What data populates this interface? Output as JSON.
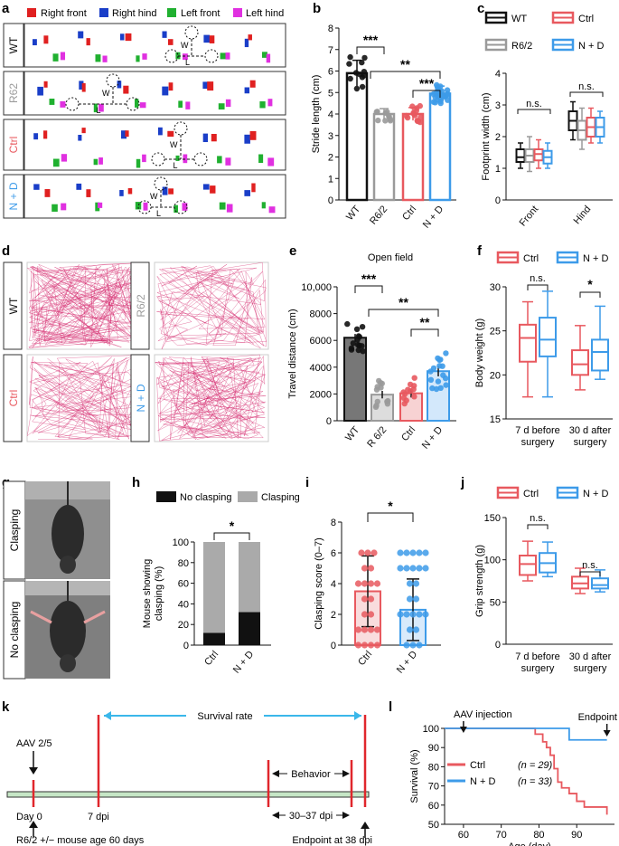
{
  "colors": {
    "wt": "#111111",
    "r62": "#9a9a9a",
    "ctrl": "#e8595f",
    "nd": "#3d9be9",
    "rf": "#e02020",
    "rh": "#1a3ec8",
    "lf": "#20b030",
    "lh": "#e030e0",
    "track": "#d4246a"
  },
  "panel_a": {
    "letter": "a",
    "legend": [
      "Right front",
      "Right hind",
      "Left front",
      "Left hind"
    ],
    "rows": [
      "WT",
      "R62",
      "Ctrl",
      "N + D"
    ],
    "w_label": "W",
    "l_label": "L"
  },
  "panel_d": {
    "letter": "d",
    "labels": [
      "WT",
      "R6/2",
      "Ctrl",
      "N + D"
    ]
  },
  "panel_g": {
    "letter": "g",
    "labels": [
      "Clasping",
      "No clasping"
    ]
  },
  "panel_k": {
    "letter": "k",
    "aav": "AAV 2/5",
    "day0": "Day 0",
    "dpi7": "7 dpi",
    "survival": "Survival rate",
    "behavior": "Behavior",
    "dpi3037": "30–37 dpi",
    "mouse_age": "R6/2 +/− mouse age 60 days",
    "endpoint": "Endpoint at 38 dpi"
  },
  "chart_data": [
    {
      "id": "b",
      "type": "bar",
      "letter": "b",
      "categories": [
        "WT",
        "R6/2",
        "Ctrl",
        "N + D"
      ],
      "values": [
        5.9,
        4.0,
        4.0,
        4.95
      ],
      "errors": [
        0.6,
        0.25,
        0.3,
        0.35
      ],
      "ylabel": "Stride length (cm)",
      "ylim": [
        0,
        8
      ],
      "yticks": [
        "0",
        "1",
        "2",
        "3",
        "4",
        "5",
        "6",
        "7",
        "8"
      ],
      "significance": [
        "***",
        "**",
        "***"
      ]
    },
    {
      "id": "c",
      "type": "box",
      "letter": "c",
      "legend": [
        "WT",
        "Ctrl",
        "R6/2",
        "N + D"
      ],
      "categories": [
        "Front",
        "Hind"
      ],
      "ylabel": "Footprint width (cm)",
      "ylim": [
        0,
        4
      ],
      "yticks": [
        "0",
        "1",
        "2",
        "3",
        "4"
      ],
      "significance": [
        "n.s.",
        "n.s."
      ]
    },
    {
      "id": "e",
      "type": "bar",
      "letter": "e",
      "title": "Open field",
      "categories": [
        "WT",
        "R 6/2",
        "Ctrl",
        "N + D"
      ],
      "values": [
        6200,
        1950,
        2050,
        3700
      ],
      "errors": [
        800,
        800,
        900,
        1100
      ],
      "ylabel": "Travel distance (cm)",
      "ylim": [
        0,
        10000
      ],
      "yticks": [
        "0",
        "2000",
        "4000",
        "6000",
        "8000",
        "10,000"
      ],
      "significance": [
        "***",
        "**",
        "**"
      ]
    },
    {
      "id": "f",
      "type": "box",
      "letter": "f",
      "legend": [
        "Ctrl",
        "N + D"
      ],
      "categories": [
        "7 d before",
        "30 d after"
      ],
      "categories2": [
        "surgery",
        "surgery"
      ],
      "ylabel": "Body weight (g)",
      "ylim": [
        15,
        30
      ],
      "yticks": [
        "15",
        "20",
        "25",
        "30"
      ],
      "significance": [
        "n.s.",
        "*"
      ]
    },
    {
      "id": "h",
      "type": "bar",
      "letter": "h",
      "legend": [
        "No clasping",
        "Clasping"
      ],
      "categories": [
        "Ctrl",
        "N + D"
      ],
      "series": [
        {
          "name": "No clasping",
          "values": [
            12,
            32
          ]
        },
        {
          "name": "Clasping",
          "values": [
            88,
            68
          ]
        }
      ],
      "ylabel": "Mouse showing",
      "ylabel2": "clasping (%)",
      "ylim": [
        0,
        100
      ],
      "yticks": [
        "0",
        "20",
        "40",
        "60",
        "80",
        "100"
      ],
      "significance": [
        "*"
      ]
    },
    {
      "id": "i",
      "type": "bar",
      "letter": "i",
      "categories": [
        "Ctrl",
        "N + D"
      ],
      "values": [
        3.5,
        2.3
      ],
      "errors": [
        2.3,
        2.0
      ],
      "ylabel": "Clasping score (0–7)",
      "ylim": [
        0,
        8
      ],
      "yticks": [
        "0",
        "2",
        "4",
        "6",
        "8"
      ],
      "significance": [
        "*"
      ]
    },
    {
      "id": "j",
      "type": "box",
      "letter": "j",
      "legend": [
        "Ctrl",
        "N + D"
      ],
      "categories": [
        "7 d before",
        "30 d after"
      ],
      "categories2": [
        "surgery",
        "surgery"
      ],
      "ylabel": "Grip strength (g)",
      "ylim": [
        0,
        150
      ],
      "yticks": [
        "0",
        "50",
        "100",
        "150"
      ],
      "significance": [
        "n.s.",
        "n.s."
      ]
    },
    {
      "id": "l",
      "type": "line",
      "letter": "l",
      "xlabel": "Age (day)",
      "ylabel": "Survival (%)",
      "xlim": [
        55,
        100
      ],
      "ylim": [
        50,
        100
      ],
      "xticks": [
        "60",
        "70",
        "80",
        "90"
      ],
      "yticks": [
        "50",
        "60",
        "70",
        "80",
        "90",
        "100"
      ],
      "annotations": [
        "AAV injection",
        "Endpoint"
      ],
      "series": [
        {
          "name": "Ctrl",
          "n": "(n = 29)",
          "x": [
            55,
            73,
            79,
            81,
            82,
            83,
            84,
            85,
            86,
            88,
            90,
            92,
            95,
            98
          ],
          "y": [
            100,
            100,
            97,
            93,
            90,
            86,
            79,
            72,
            69,
            66,
            62,
            59,
            59,
            55
          ]
        },
        {
          "name": "N + D",
          "n": "(n = 33)",
          "x": [
            55,
            84,
            88,
            98
          ],
          "y": [
            100,
            100,
            94,
            94
          ]
        }
      ]
    }
  ]
}
